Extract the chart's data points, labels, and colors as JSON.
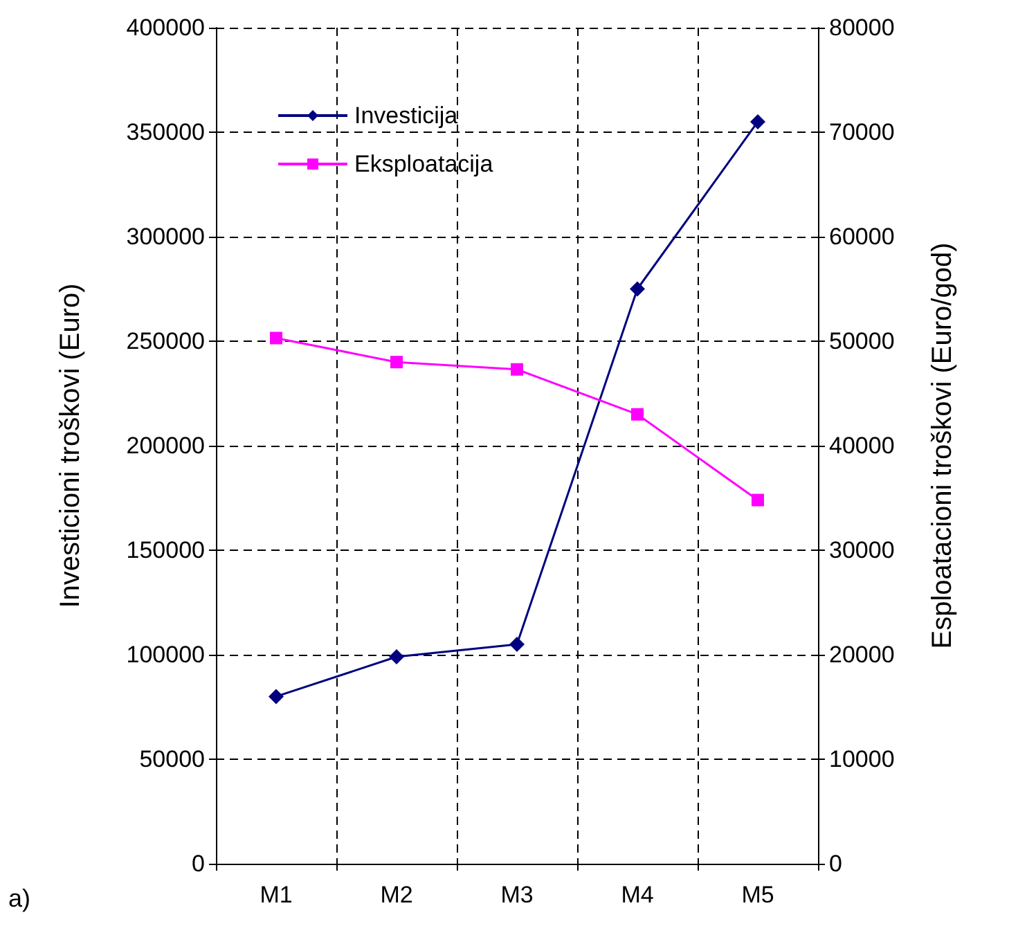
{
  "chart_data": {
    "type": "line",
    "categories": [
      "M1",
      "M2",
      "M3",
      "M4",
      "M5"
    ],
    "ylabel": "Investicioni troškovi (Euro)",
    "y2label": "Esploatacioni troškovi (Euro/god)",
    "ylim": [
      0,
      400000
    ],
    "yticks": [
      0,
      50000,
      100000,
      150000,
      200000,
      250000,
      300000,
      350000,
      400000
    ],
    "y2lim": [
      0,
      80000
    ],
    "y2ticks": [
      0,
      10000,
      20000,
      30000,
      40000,
      50000,
      60000,
      70000,
      80000
    ],
    "series": [
      {
        "name": "Investicija",
        "color": "#000080",
        "marker": "diamond",
        "values": [
          80000,
          99000,
          105000,
          275000,
          355000
        ]
      },
      {
        "name": "Eksploatacija",
        "color": "#ff00ff",
        "marker": "square",
        "axis": "y2",
        "values": [
          50300,
          48000,
          47300,
          43000,
          34800
        ]
      }
    ],
    "annotations": [
      "a)"
    ],
    "grid": true,
    "legend": "top left",
    "line_style": "solid"
  }
}
